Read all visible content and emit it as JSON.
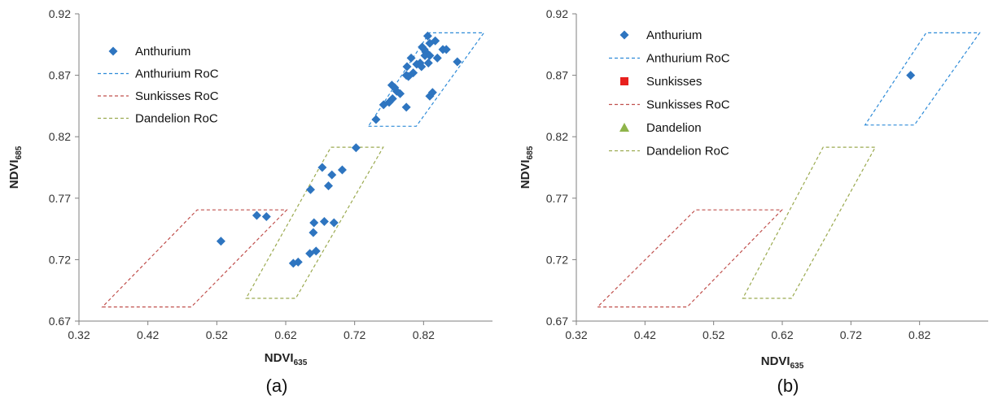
{
  "colors": {
    "anthurium": "#2E75C0",
    "anthurium_roc": "#2E8BD8",
    "sunkisses": "#E8201E",
    "sunkisses_roc": "#C0504D",
    "dandelion": "#8FB44A",
    "dandelion_roc": "#9BAA50",
    "axis": "#7F7F7F"
  },
  "chart_data": [
    {
      "type": "scatter",
      "panel_label": "(a)",
      "xlabel": "NDVI",
      "xlabel_sub": "635",
      "ylabel": "NDVI",
      "ylabel_sub": "685",
      "xlim": [
        0.32,
        0.92
      ],
      "ylim": [
        0.67,
        0.92
      ],
      "xticks": [
        0.32,
        0.42,
        0.52,
        0.62,
        0.72,
        0.82
      ],
      "yticks": [
        0.67,
        0.72,
        0.77,
        0.82,
        0.87,
        0.92
      ],
      "xtick_labels": [
        "0.32",
        "0.42",
        "0.52",
        "0.62",
        "0.72",
        "0.82"
      ],
      "ytick_labels": [
        "0.67",
        "0.72",
        "0.77",
        "0.82",
        "0.87",
        "0.92"
      ],
      "legend": [
        {
          "label": "Anthurium",
          "kind": "diamond",
          "color_key": "anthurium"
        },
        {
          "label": "Anthurium RoC",
          "kind": "dash",
          "color_key": "anthurium_roc"
        },
        {
          "label": "Sunkisses RoC",
          "kind": "dash",
          "color_key": "sunkisses_roc"
        },
        {
          "label": "Dandelion RoC",
          "kind": "dash",
          "color_key": "dandelion_roc"
        }
      ],
      "regions": [
        {
          "name": "Anthurium RoC",
          "color_key": "anthurium_roc",
          "points": [
            [
              0.74,
              0.8285
            ],
            [
              0.8095,
              0.8285
            ],
            [
              0.9075,
              0.9045
            ],
            [
              0.8285,
              0.9045
            ]
          ]
        },
        {
          "name": "Sunkisses RoC",
          "color_key": "sunkisses_roc",
          "points": [
            [
              0.354,
              0.6815
            ],
            [
              0.483,
              0.6815
            ],
            [
              0.6215,
              0.7605
            ],
            [
              0.4915,
              0.7605
            ]
          ]
        },
        {
          "name": "Dandelion RoC",
          "color_key": "dandelion_roc",
          "points": [
            [
              0.5625,
              0.6885
            ],
            [
              0.6345,
              0.6885
            ],
            [
              0.7615,
              0.8115
            ],
            [
              0.6855,
              0.8115
            ]
          ]
        }
      ],
      "series": [
        {
          "name": "Anthurium",
          "marker": "diamond",
          "color_key": "anthurium",
          "points": [
            [
              0.826,
              0.902
            ],
            [
              0.837,
              0.898
            ],
            [
              0.829,
              0.896
            ],
            [
              0.818,
              0.893
            ],
            [
              0.821,
              0.891
            ],
            [
              0.823,
              0.889
            ],
            [
              0.848,
              0.891
            ],
            [
              0.853,
              0.891
            ],
            [
              0.822,
              0.886
            ],
            [
              0.829,
              0.886
            ],
            [
              0.802,
              0.884
            ],
            [
              0.84,
              0.884
            ],
            [
              0.815,
              0.88
            ],
            [
              0.827,
              0.88
            ],
            [
              0.81,
              0.879
            ],
            [
              0.796,
              0.877
            ],
            [
              0.817,
              0.877
            ],
            [
              0.869,
              0.881
            ],
            [
              0.805,
              0.872
            ],
            [
              0.795,
              0.87
            ],
            [
              0.798,
              0.869
            ],
            [
              0.774,
              0.862
            ],
            [
              0.778,
              0.86
            ],
            [
              0.781,
              0.857
            ],
            [
              0.786,
              0.855
            ],
            [
              0.833,
              0.856
            ],
            [
              0.829,
              0.853
            ],
            [
              0.775,
              0.851
            ],
            [
              0.77,
              0.848
            ],
            [
              0.762,
              0.846
            ],
            [
              0.795,
              0.844
            ],
            [
              0.751,
              0.834
            ],
            [
              0.722,
              0.811
            ],
            [
              0.673,
              0.795
            ],
            [
              0.702,
              0.793
            ],
            [
              0.687,
              0.789
            ],
            [
              0.682,
              0.78
            ],
            [
              0.656,
              0.777
            ],
            [
              0.592,
              0.755
            ],
            [
              0.578,
              0.756
            ],
            [
              0.676,
              0.751
            ],
            [
              0.69,
              0.75
            ],
            [
              0.661,
              0.75
            ],
            [
              0.66,
              0.742
            ],
            [
              0.526,
              0.735
            ],
            [
              0.655,
              0.725
            ],
            [
              0.664,
              0.727
            ],
            [
              0.631,
              0.717
            ],
            [
              0.638,
              0.718
            ]
          ]
        }
      ]
    },
    {
      "type": "scatter",
      "panel_label": "(b)",
      "xlabel": "NDVI",
      "xlabel_sub": "635",
      "ylabel": "NDVI",
      "ylabel_sub": "685",
      "xlim": [
        0.32,
        0.92
      ],
      "ylim": [
        0.67,
        0.92
      ],
      "xticks": [
        0.32,
        0.42,
        0.52,
        0.62,
        0.72,
        0.82
      ],
      "yticks": [
        0.67,
        0.72,
        0.77,
        0.82,
        0.87,
        0.92
      ],
      "xtick_labels": [
        "0.32",
        "0.42",
        "0.52",
        "0.62",
        "0.72",
        "0.82"
      ],
      "ytick_labels": [
        "0.67",
        "0.72",
        "0.77",
        "0.82",
        "0.87",
        "0.92"
      ],
      "legend": [
        {
          "label": "Anthurium",
          "kind": "diamond",
          "color_key": "anthurium"
        },
        {
          "label": "Anthurium RoC",
          "kind": "dash",
          "color_key": "anthurium_roc"
        },
        {
          "label": "Sunkisses",
          "kind": "square",
          "color_key": "sunkisses"
        },
        {
          "label": "Sunkisses RoC",
          "kind": "dash",
          "color_key": "sunkisses_roc"
        },
        {
          "label": "Dandelion",
          "kind": "triangle",
          "color_key": "dandelion"
        },
        {
          "label": "Dandelion RoC",
          "kind": "dash",
          "color_key": "dandelion_roc"
        }
      ],
      "regions": [
        {
          "name": "Anthurium RoC",
          "color_key": "anthurium_roc",
          "points": [
            [
              0.7405,
              0.8295
            ],
            [
              0.8125,
              0.8295
            ],
            [
              0.9075,
              0.9045
            ],
            [
              0.8295,
              0.9045
            ]
          ]
        },
        {
          "name": "Sunkisses RoC",
          "color_key": "sunkisses_roc",
          "points": [
            [
              0.351,
              0.6815
            ],
            [
              0.4815,
              0.6815
            ],
            [
              0.6195,
              0.7605
            ],
            [
              0.4935,
              0.7605
            ]
          ]
        },
        {
          "name": "Dandelion RoC",
          "color_key": "dandelion_roc",
          "points": [
            [
              0.5625,
              0.6885
            ],
            [
              0.6335,
              0.6885
            ],
            [
              0.7555,
              0.8115
            ],
            [
              0.6795,
              0.8115
            ]
          ]
        }
      ],
      "series": [
        {
          "name": "Anthurium",
          "marker": "diamond",
          "color_key": "anthurium",
          "points": [
            [
              0.807,
              0.87
            ]
          ]
        }
      ]
    }
  ]
}
